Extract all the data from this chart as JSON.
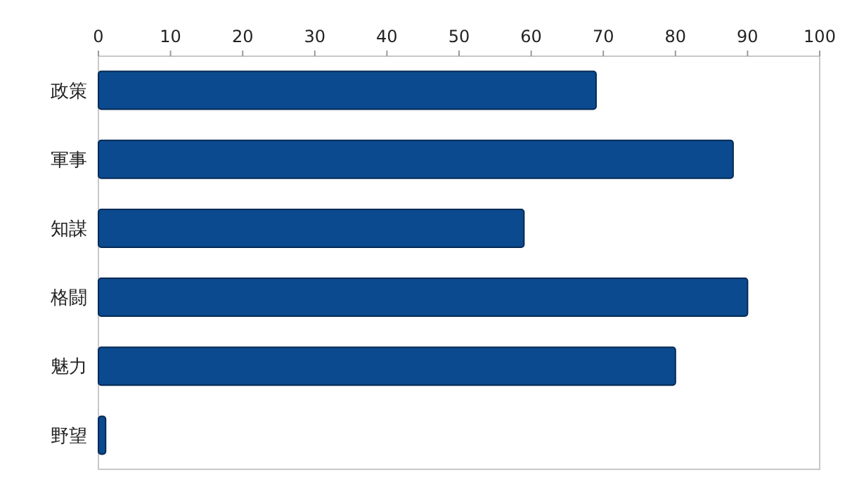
{
  "chart_data": {
    "type": "bar",
    "orientation": "horizontal",
    "categories": [
      "政策",
      "軍事",
      "知謀",
      "格闘",
      "魅力",
      "野望"
    ],
    "values": [
      69,
      88,
      59,
      90,
      80,
      1
    ],
    "color": "#0b4a8e",
    "xlim": [
      0,
      100
    ],
    "xticks": [
      0,
      10,
      20,
      30,
      40,
      50,
      60,
      70,
      80,
      90,
      100
    ]
  }
}
